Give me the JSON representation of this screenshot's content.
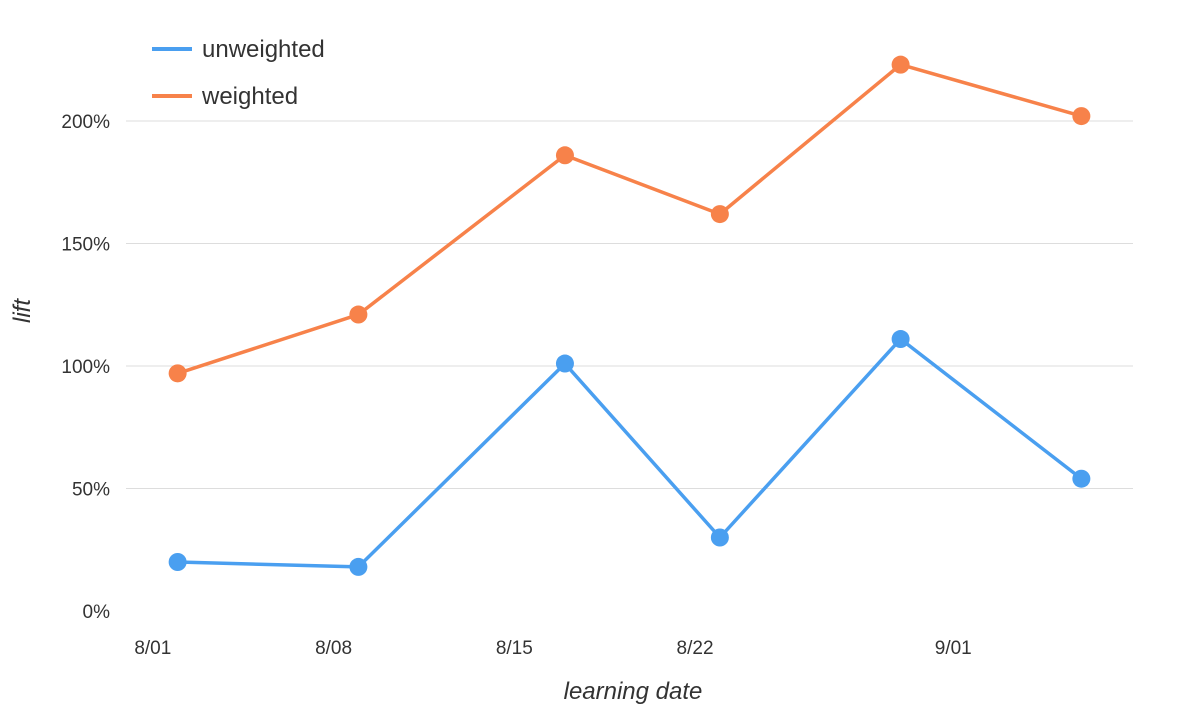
{
  "chart_data": {
    "type": "line",
    "title": "",
    "xlabel": "learning date",
    "ylabel": "lift",
    "x": [
      "2024-08-02",
      "2024-08-09",
      "2024-08-17",
      "2024-08-23",
      "2024-08-30",
      "2024-09-06"
    ],
    "series": [
      {
        "name": "unweighted",
        "color": "#4a9ff0",
        "values": [
          20,
          18,
          101,
          30,
          111,
          54
        ]
      },
      {
        "name": "weighted",
        "color": "#f7824a",
        "values": [
          97,
          121,
          186,
          162,
          223,
          202
        ]
      }
    ],
    "xlim": [
      "2024-07-31",
      "2024-09-08"
    ],
    "ylim": [
      0,
      200
    ],
    "x_ticks": [
      {
        "date": "2024-08-01",
        "label": "8/01"
      },
      {
        "date": "2024-08-08",
        "label": "8/08"
      },
      {
        "date": "2024-08-15",
        "label": "8/15"
      },
      {
        "date": "2024-08-22",
        "label": "8/22"
      },
      {
        "date": "2024-09-01",
        "label": "9/01"
      }
    ],
    "y_ticks": [
      {
        "value": 0,
        "label": "0%"
      },
      {
        "value": 50,
        "label": "50%"
      },
      {
        "value": 100,
        "label": "100%"
      },
      {
        "value": 150,
        "label": "150%"
      },
      {
        "value": 200,
        "label": "200%"
      }
    ],
    "grid": true,
    "legend_position": "top-left"
  }
}
